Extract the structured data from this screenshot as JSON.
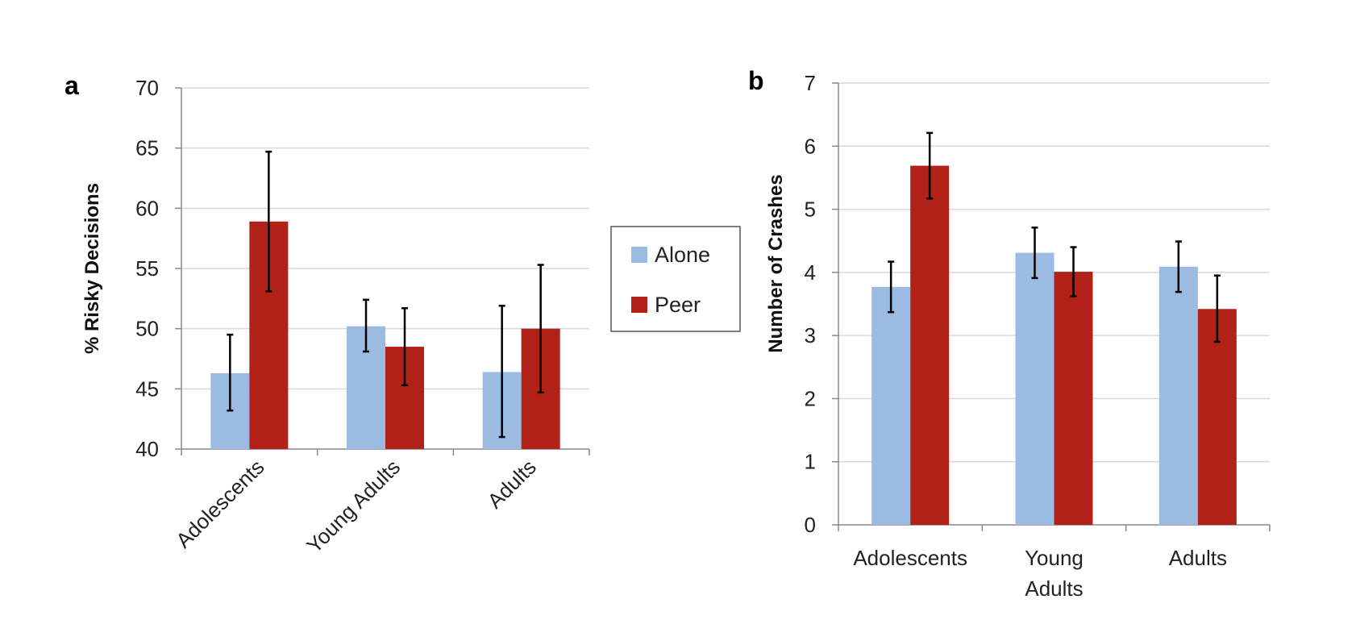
{
  "legend": {
    "items": [
      {
        "label": "Alone",
        "color": "#9bbbe3"
      },
      {
        "label": "Peer",
        "color": "#b22118"
      }
    ]
  },
  "chart_data": [
    {
      "panel": "a",
      "type": "bar",
      "ylabel": "% Risky Decisions",
      "xlabel": "",
      "ylim": [
        40,
        70
      ],
      "yticks": [
        40,
        45,
        50,
        55,
        60,
        65,
        70
      ],
      "categories": [
        "Adolescents",
        "Young Adults",
        "Adults"
      ],
      "series": [
        {
          "name": "Alone",
          "color": "#9bbbe3",
          "values": [
            46.3,
            50.2,
            46.4
          ],
          "err_low": [
            43.2,
            48.1,
            41.0
          ],
          "err_high": [
            49.5,
            52.4,
            51.9
          ]
        },
        {
          "name": "Peer",
          "color": "#b22118",
          "values": [
            58.9,
            48.5,
            50.0
          ],
          "err_low": [
            53.1,
            45.3,
            44.7
          ],
          "err_high": [
            64.7,
            51.7,
            55.3
          ]
        }
      ],
      "grid": true,
      "xtick_rotation": -45
    },
    {
      "panel": "b",
      "type": "bar",
      "ylabel": "Number of Crashes",
      "xlabel": "",
      "ylim": [
        0,
        7
      ],
      "yticks": [
        0,
        1,
        2,
        3,
        4,
        5,
        6,
        7
      ],
      "categories": [
        "Adolescents",
        "Young Adults",
        "Adults"
      ],
      "series": [
        {
          "name": "Alone",
          "color": "#9bbbe3",
          "values": [
            3.77,
            4.31,
            4.09
          ],
          "err_low": [
            3.37,
            3.91,
            3.69
          ],
          "err_high": [
            4.17,
            4.71,
            4.49
          ]
        },
        {
          "name": "Peer",
          "color": "#b22118",
          "values": [
            5.69,
            4.01,
            3.42
          ],
          "err_low": [
            5.17,
            3.62,
            2.9
          ],
          "err_high": [
            6.21,
            4.4,
            3.95
          ]
        }
      ],
      "grid": true,
      "xtick_rotation": 0
    }
  ]
}
